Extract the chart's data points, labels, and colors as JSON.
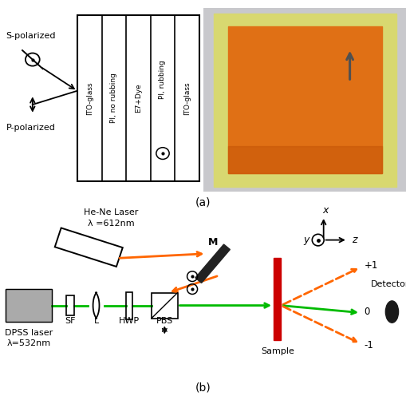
{
  "panel_a_label": "(a)",
  "panel_b_label": "(b)",
  "layer_texts": [
    "ITO-glass",
    "PI, no rubbing",
    "E7+Dye",
    "PI, rubbing",
    "ITO-glass"
  ],
  "s_polarized": "S-polarized",
  "p_polarized": "P-polarized",
  "he_ne_line1": "He-Ne Laser",
  "he_ne_line2": "λ =612nm",
  "dpss_line1": "DPSS laser",
  "dpss_line2": "λ=532nm",
  "sf_label": "SF",
  "l_label": "L",
  "hwp_label": "HWP",
  "pbs_label": "PBS",
  "m_label": "M",
  "sample_label": "Sample",
  "detector_label": "Detector",
  "x_label": "x",
  "y_label": "y",
  "z_label": "z",
  "d_orders": [
    "+1",
    "0",
    "-1"
  ],
  "green_color": "#00BB00",
  "orange_color": "#FF6600",
  "sample_color": "#CC0000",
  "mirror_color": "#222222",
  "dpss_fill": "#aaaaaa",
  "bg_color": "#ffffff"
}
